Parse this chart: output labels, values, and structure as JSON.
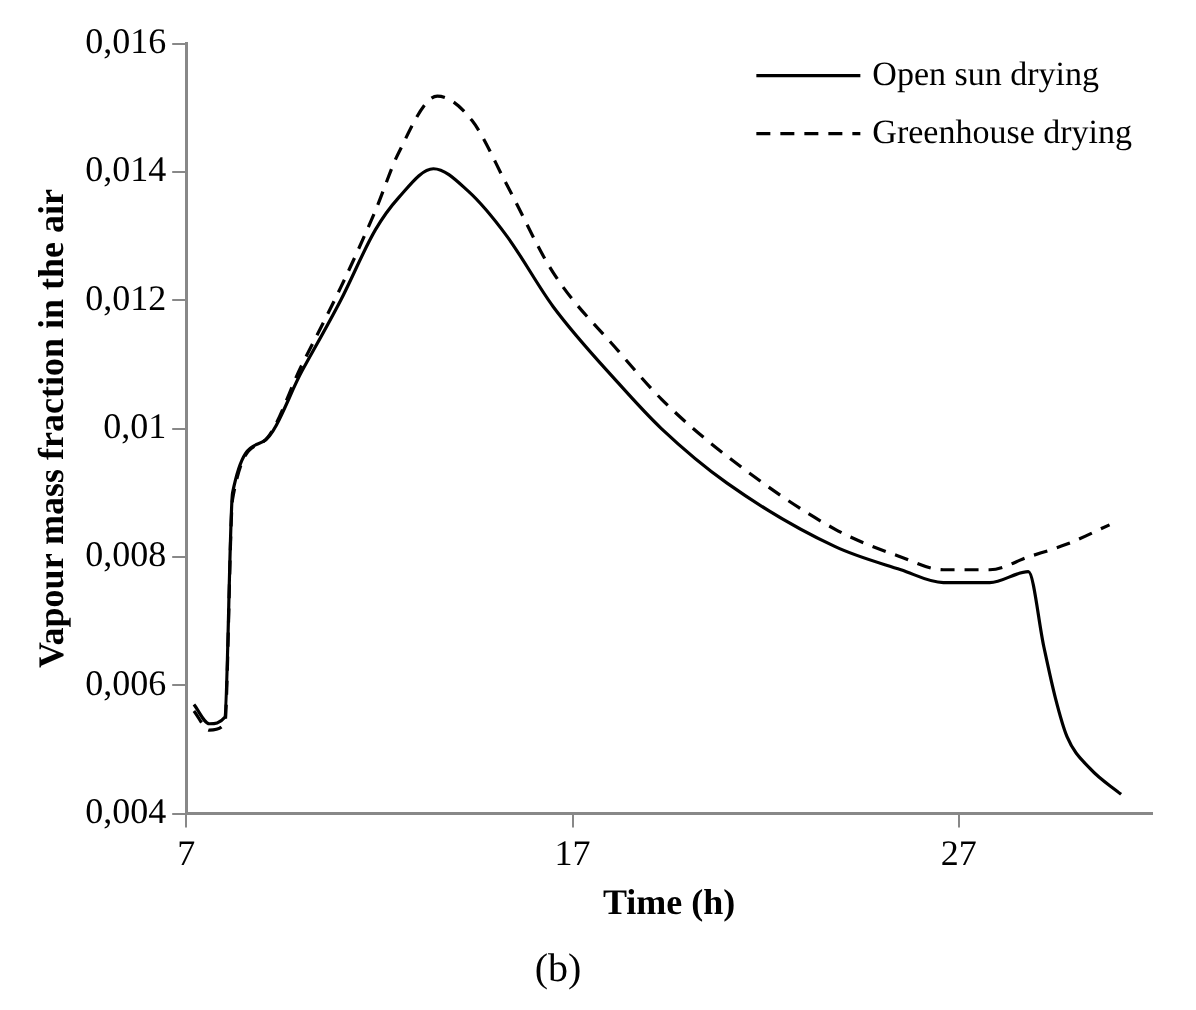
{
  "chart_data": {
    "type": "line",
    "xlabel": "Time (h)",
    "ylabel": "Vapour mass fraction in the air",
    "annotations": [
      "(b)"
    ],
    "legend": "top right",
    "grid": false,
    "marker": "none",
    "xlim": [
      7,
      32
    ],
    "xticks": [
      7,
      17,
      27
    ],
    "ylim": [
      0.004,
      0.016
    ],
    "yticks": [
      {
        "value": 0.004,
        "label": "0,004"
      },
      {
        "value": 0.006,
        "label": "0,006"
      },
      {
        "value": 0.008,
        "label": "0,008"
      },
      {
        "value": 0.01,
        "label": "0,01"
      },
      {
        "value": 0.012,
        "label": "0,012"
      },
      {
        "value": 0.014,
        "label": "0,014"
      },
      {
        "value": 0.016,
        "label": "0,016"
      }
    ],
    "series": [
      {
        "name": "Open sun drying",
        "color": "#000000",
        "line_style": "solid",
        "x": [
          7.2,
          7.6,
          8.0,
          8.2,
          9.0,
          10.0,
          11.0,
          11.9,
          12.5,
          13.4,
          14.3,
          15.3,
          16.5,
          18.2,
          19.3,
          21.0,
          23.8,
          25.5,
          26.6,
          27.8,
          28.8,
          29.2,
          29.5,
          29.8,
          30.4,
          31.2
        ],
        "values": [
          0.0057,
          0.0054,
          0.0055,
          0.009,
          0.0098,
          0.0109,
          0.012,
          0.0131,
          0.0136,
          0.01405,
          0.0137,
          0.013,
          0.0119,
          0.0107,
          0.01,
          0.00915,
          0.00816,
          0.0078,
          0.0076,
          0.0076,
          0.00777,
          0.0066,
          0.0058,
          0.0052,
          0.0047,
          0.0043
        ]
      },
      {
        "name": "Greenhouse drying",
        "color": "#000000",
        "line_style": "dashed",
        "x": [
          7.2,
          7.6,
          8.0,
          8.2,
          9.0,
          10.0,
          11.0,
          11.9,
          12.5,
          13.5,
          14.4,
          15.3,
          16.5,
          18.2,
          19.3,
          21.0,
          23.8,
          25.5,
          26.6,
          27.8,
          28.8,
          29.8,
          30.9
        ],
        "values": [
          0.0056,
          0.0053,
          0.0054,
          0.0089,
          0.0098,
          0.011,
          0.0122,
          0.0134,
          0.0143,
          0.01518,
          0.0148,
          0.0138,
          0.01243,
          0.0112,
          0.01046,
          0.00957,
          0.00843,
          0.008,
          0.0078,
          0.0078,
          0.008,
          0.0082,
          0.0085
        ]
      }
    ]
  }
}
